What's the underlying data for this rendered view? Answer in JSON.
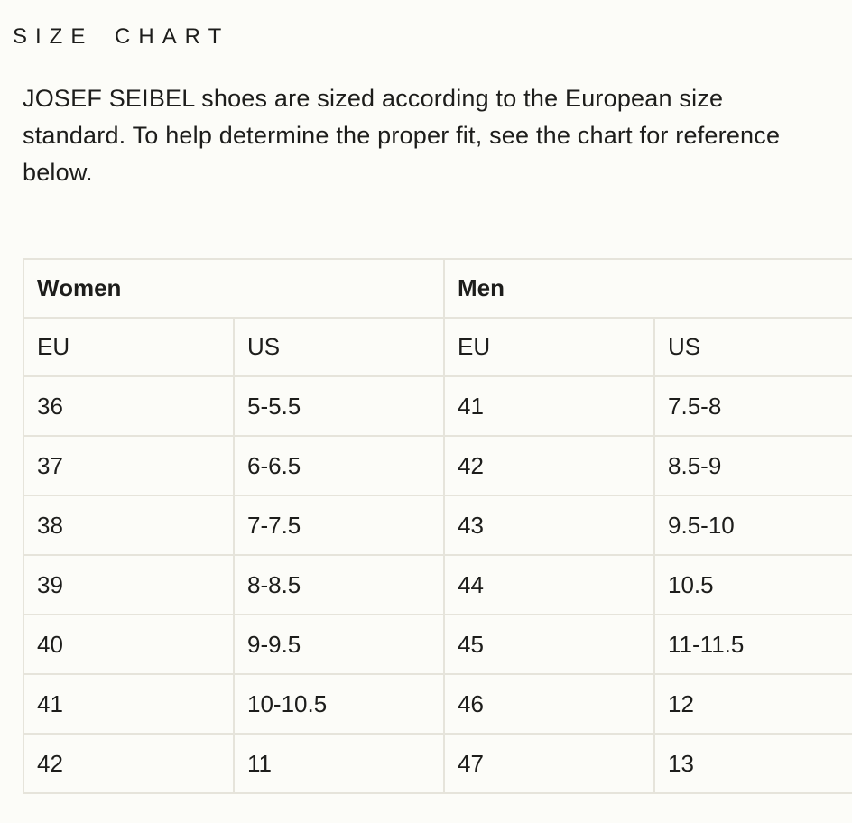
{
  "page": {
    "title": "SIZE CHART",
    "description": "JOSEF SEIBEL shoes are sized according to the European size standard. To help determine the proper fit, see the chart for reference below."
  },
  "size_table": {
    "group_headers": [
      "Women",
      "Men"
    ],
    "sub_headers": [
      "EU",
      "US",
      "EU",
      "US"
    ],
    "rows": [
      [
        "36",
        "5-5.5",
        "41",
        "7.5-8"
      ],
      [
        "37",
        "6-6.5",
        "42",
        "8.5-9"
      ],
      [
        "38",
        "7-7.5",
        "43",
        "9.5-10"
      ],
      [
        "39",
        "8-8.5",
        "44",
        "10.5"
      ],
      [
        "40",
        "9-9.5",
        "45",
        "11-11.5"
      ],
      [
        "41",
        "10-10.5",
        "46",
        "12"
      ],
      [
        "42",
        "11",
        "47",
        "13"
      ]
    ]
  },
  "colors": {
    "background": "#fcfcf8",
    "table_border": "#e6e4db",
    "text": "#1d1d1b"
  }
}
